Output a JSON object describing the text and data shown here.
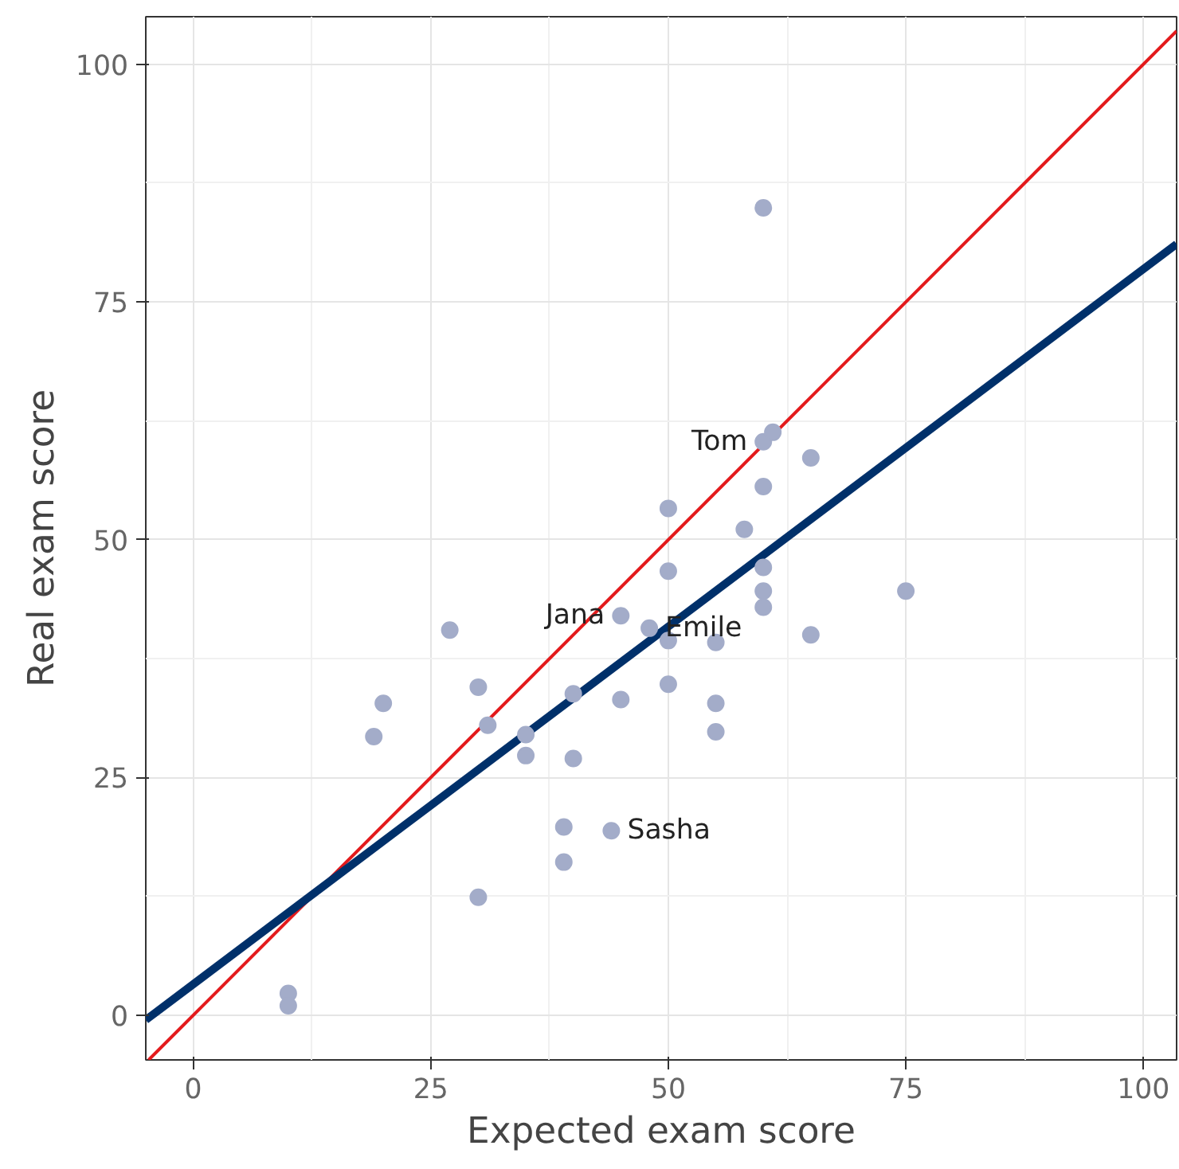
{
  "chart_data": {
    "type": "scatter",
    "xlabel": "Expected exam score",
    "ylabel": "Real exam score",
    "xlim": [
      -5,
      103.5
    ],
    "ylim": [
      -4.7,
      105
    ],
    "xticks": [
      0,
      25,
      50,
      75,
      100
    ],
    "yticks": [
      0,
      25,
      50,
      75,
      100
    ],
    "grid": true,
    "series": [
      {
        "marker": "circle",
        "color": "#a3acc9",
        "x": [
          10,
          10,
          19,
          20,
          27,
          30,
          30,
          31,
          35,
          35,
          40,
          40,
          39,
          39,
          44,
          45,
          45,
          48,
          50,
          50,
          50,
          50,
          55,
          55,
          55,
          58,
          60,
          60,
          61,
          60,
          60,
          60,
          60,
          65,
          65,
          75
        ],
        "values": [
          2.3,
          1.0,
          29.3,
          32.8,
          40.5,
          34.5,
          12.4,
          30.5,
          29.5,
          27.3,
          33.8,
          27,
          19.8,
          16.1,
          19.4,
          42,
          33.2,
          40.7,
          53.3,
          46.7,
          39.4,
          34.8,
          39.2,
          32.8,
          29.8,
          51.1,
          84.9,
          60.3,
          61.3,
          55.6,
          47.1,
          44.6,
          42.9,
          58.6,
          40,
          44.6
        ]
      },
      {
        "type": "line",
        "color": "#e31a1c",
        "x": [
          -4.7,
          103.5
        ],
        "values": [
          -4.7,
          103.5
        ]
      },
      {
        "type": "line",
        "color": "#00306a",
        "x": [
          -5,
          103.5
        ],
        "values": [
          -0.5,
          81.1
        ]
      }
    ],
    "annotations": [
      {
        "text": "Tom",
        "x": 60,
        "y": 60.3
      },
      {
        "text": "Jana",
        "x": 45,
        "y": 42
      },
      {
        "text": "Emile",
        "x": 48,
        "y": 40.7
      },
      {
        "text": "Sasha",
        "x": 44,
        "y": 19.4
      }
    ]
  }
}
